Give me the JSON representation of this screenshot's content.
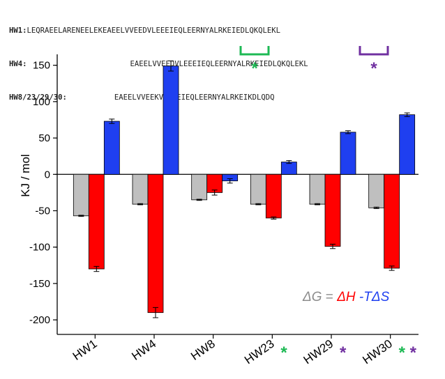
{
  "sequences": [
    {
      "label": "HW1:",
      "text": "LEQRAEELARENEELEKEAEELVVEEDVLEEEIEQLEERNYALRKEIEDLQKQLEKL"
    },
    {
      "label": "HW4:",
      "text": "EAEELVVEEDVLEEEIEQLEERNYALRKEIEDLQKQLEKL"
    },
    {
      "label": "HW8/23/29/30:",
      "text": "EAEELVVEEKVLEDEIEQLEERNYALRKEIKDLQDQ"
    }
  ],
  "markers": {
    "green": {
      "color": "#1db954",
      "symbol": "*"
    },
    "purple": {
      "color": "#7030a0",
      "symbol": "*"
    }
  },
  "equation": {
    "dg": "ΔG",
    "eq": " = ",
    "dh": "ΔH",
    "tds": " -TΔS",
    "dg_color": "#8c8c8c",
    "dh_color": "#ff0000",
    "tds_color": "#1f3ff0"
  },
  "chart_data": {
    "type": "bar",
    "categories": [
      "HW1",
      "HW4",
      "HW8",
      "HW23",
      "HW29",
      "HW30"
    ],
    "category_marks": [
      [],
      [],
      [],
      [
        "green"
      ],
      [
        "purple"
      ],
      [
        "green",
        "purple"
      ]
    ],
    "series": [
      {
        "name": "ΔG",
        "color": "#bfbfbf",
        "values": [
          -57,
          -41,
          -35,
          -41,
          -41,
          -46
        ],
        "errors": [
          0.8,
          0.8,
          0.8,
          0.8,
          0.8,
          1.0
        ]
      },
      {
        "name": "ΔH",
        "color": "#ff0000",
        "values": [
          -130,
          -190,
          -25,
          -60,
          -99,
          -129
        ],
        "errors": [
          3.5,
          7,
          3.5,
          1.5,
          3,
          3
        ]
      },
      {
        "name": "-TΔS",
        "color": "#1f3ff0",
        "values": [
          73,
          149,
          -9,
          17,
          58,
          82
        ],
        "errors": [
          3,
          7,
          3,
          2,
          2,
          2.5
        ]
      }
    ],
    "ylabel": "KJ / mol",
    "ylim": [
      -220,
      165
    ],
    "yticks": [
      150,
      100,
      50,
      0,
      -50,
      -100,
      -150,
      -200
    ]
  }
}
